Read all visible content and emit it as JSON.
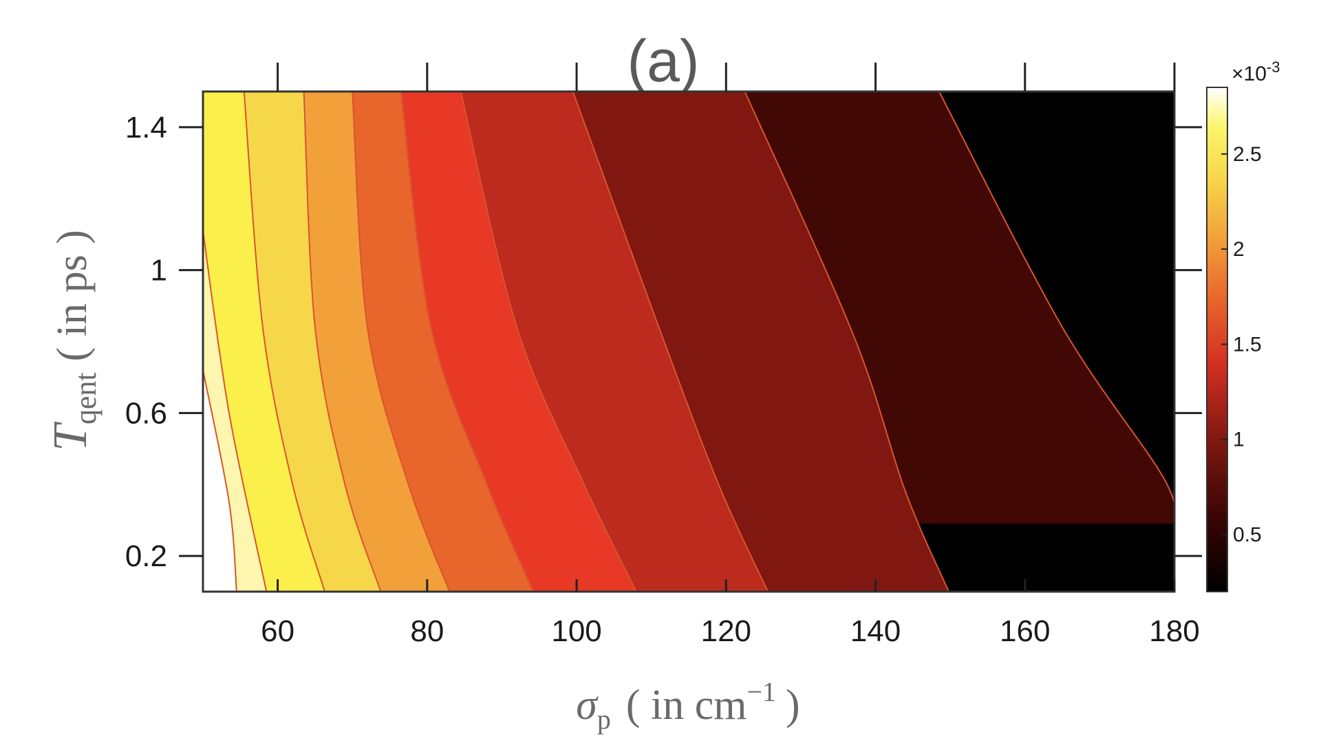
{
  "chart_data": {
    "type": "contour",
    "title": "(a)",
    "xlabel": {
      "symbol": "σ",
      "subscript": "p",
      "text": "( in cm",
      "superscript": "−1",
      "close": ")"
    },
    "ylabel": {
      "symbol": "T",
      "subscript": "qent",
      "text": "( in ps )"
    },
    "xlim": [
      50,
      180
    ],
    "ylim": [
      0.1,
      1.5
    ],
    "xticks": [
      60,
      80,
      100,
      120,
      140,
      160,
      180
    ],
    "xtick_labels": [
      "60",
      "80",
      "100",
      "120",
      "140",
      "160",
      "180"
    ],
    "yticks": [
      0.2,
      0.6,
      1.0,
      1.4
    ],
    "ytick_labels": [
      "0.2",
      "0.6",
      "1",
      "1.4"
    ],
    "colormap": "hot",
    "colorbar": {
      "multiplier_base": "×10",
      "multiplier_exp": "-3",
      "range": [
        0.2,
        2.85
      ],
      "ticks": [
        0.5,
        1.0,
        1.5,
        2.0,
        2.5
      ],
      "tick_labels": [
        "0.5",
        "1",
        "1.5",
        "2",
        "2.5"
      ]
    },
    "contour_levels": [
      {
        "level": 0.28,
        "points": [
          [
            148.5,
            1.5
          ],
          [
            165,
            0.84
          ],
          [
            178.5,
            0.42
          ],
          [
            180,
            0.29
          ]
        ]
      },
      {
        "level": 0.55,
        "points": [
          [
            122.5,
            1.5
          ],
          [
            137,
            0.82
          ],
          [
            144,
            0.38
          ],
          [
            149.8,
            0.1
          ]
        ]
      },
      {
        "level": 0.85,
        "points": [
          [
            99.5,
            1.5
          ],
          [
            111,
            0.84
          ],
          [
            119,
            0.4
          ],
          [
            125.6,
            0.1
          ]
        ]
      },
      {
        "level": 1.15,
        "points": [
          [
            84.5,
            1.5
          ],
          [
            92,
            0.84
          ],
          [
            101,
            0.4
          ],
          [
            108,
            0.1
          ]
        ]
      },
      {
        "level": 1.45,
        "points": [
          [
            76.5,
            1.5
          ],
          [
            80.5,
            0.84
          ],
          [
            88,
            0.4
          ],
          [
            94.2,
            0.1
          ]
        ]
      },
      {
        "level": 1.75,
        "points": [
          [
            70,
            1.5
          ],
          [
            72,
            0.84
          ],
          [
            77.5,
            0.4
          ],
          [
            83,
            0.1
          ]
        ]
      },
      {
        "level": 2.05,
        "points": [
          [
            63.5,
            1.5
          ],
          [
            65,
            0.84
          ],
          [
            69,
            0.4
          ],
          [
            73.8,
            0.1
          ]
        ]
      },
      {
        "level": 2.35,
        "points": [
          [
            55.5,
            1.5
          ],
          [
            58,
            0.84
          ],
          [
            62,
            0.4
          ],
          [
            66.3,
            0.1
          ]
        ]
      },
      {
        "level": 2.6,
        "points": [
          [
            50,
            1.11
          ],
          [
            53.5,
            0.6
          ],
          [
            58.5,
            0.1
          ]
        ]
      },
      {
        "level": 2.8,
        "points": [
          [
            50,
            0.72
          ],
          [
            53.5,
            0.35
          ],
          [
            54.5,
            0.1
          ]
        ]
      }
    ],
    "band_colors": [
      "#000000",
      "#410805",
      "#801811",
      "#bd2a1e",
      "#e73926",
      "#e8662b",
      "#f2a03a",
      "#f7d74a",
      "#fbf04b",
      "#fdf6ae",
      "#ffffff"
    ]
  }
}
